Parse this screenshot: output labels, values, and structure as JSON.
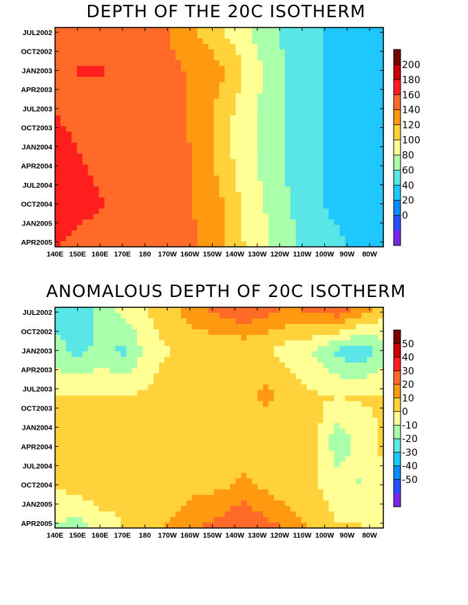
{
  "chart_data": [
    {
      "type": "heatmap",
      "title": "DEPTH OF THE 20C ISOTHERM",
      "xticks": [
        "140E",
        "150E",
        "160E",
        "170E",
        "180",
        "170W",
        "160W",
        "150W",
        "140W",
        "130W",
        "120W",
        "110W",
        "100W",
        "90W",
        "80W"
      ],
      "yticks": [
        "JUL2002",
        "OCT2002",
        "JAN2003",
        "APR2003",
        "JUL2003",
        "OCT2003",
        "JAN2004",
        "APR2004",
        "JUL2004",
        "OCT2004",
        "JAN2005",
        "APR2005"
      ],
      "colorbar": {
        "labels": [
          "200",
          "180",
          "160",
          "140",
          "120",
          "100",
          "80",
          "60",
          "40",
          "20",
          "0"
        ],
        "colors": [
          "#7a0000",
          "#c80000",
          "#ff1e1e",
          "#ff6a28",
          "#ff9a10",
          "#ffd23c",
          "#ffff96",
          "#aaffaa",
          "#5ae6e6",
          "#1ec8ff",
          "#0a8cff",
          "#2850ff",
          "#7828e6"
        ]
      },
      "description_levels": "contour levels every 20 m; warm pool west (>=140 m), shallow east (<=60 m)",
      "series": [
        {
          "values": [
            [
              145,
              150,
              155,
              155,
              150,
              140,
              125,
              110,
              95,
              80,
              70,
              60,
              55,
              50,
              45
            ],
            [
              150,
              160,
              160,
              155,
              150,
              145,
              140,
              130,
              110,
              90,
              70,
              60,
              55,
              50,
              45
            ],
            [
              160,
              155,
              155,
              150,
              150,
              145,
              140,
              120,
              100,
              85,
              70,
              60,
              55,
              50,
              45
            ],
            [
              165,
              160,
              155,
              155,
              150,
              150,
              140,
              120,
              100,
              85,
              70,
              60,
              55,
              50,
              45
            ],
            [
              165,
              165,
              160,
              155,
              150,
              150,
              140,
              130,
              105,
              90,
              75,
              60,
              55,
              50,
              45
            ],
            [
              160,
              155,
              150,
              150,
              150,
              150,
              145,
              130,
              110,
              95,
              80,
              65,
              60,
              55,
              50
            ]
          ]
        }
      ]
    },
    {
      "type": "heatmap",
      "title": "ANOMALOUS DEPTH OF 20C ISOTHERM",
      "xticks": [
        "140E",
        "150E",
        "160E",
        "170E",
        "180",
        "170W",
        "160W",
        "150W",
        "140W",
        "130W",
        "120W",
        "110W",
        "100W",
        "90W",
        "80W"
      ],
      "yticks": [
        "JUL2002",
        "OCT2002",
        "JAN2003",
        "APR2003",
        "JUL2003",
        "OCT2003",
        "JAN2004",
        "APR2004",
        "JUL2004",
        "OCT2004",
        "JAN2005",
        "APR2005"
      ],
      "colorbar": {
        "labels": [
          "50",
          "40",
          "30",
          "20",
          "10",
          "0",
          "-10",
          "-20",
          "-30",
          "-40",
          "-50"
        ],
        "colors": [
          "#7a0000",
          "#c80000",
          "#ff1e1e",
          "#ff6a28",
          "#ff9a10",
          "#ffd23c",
          "#ffff96",
          "#aaffaa",
          "#5ae6e6",
          "#1ec8ff",
          "#0a8cff",
          "#2850ff",
          "#7828e6"
        ]
      },
      "description_levels": "contour levels every 10 m; mostly 0 to +10 m with positive anomalies +20 to +30 m east in late 2002 and early 2005",
      "series": [
        {
          "values": [
            [
              -15,
              -20,
              -10,
              0,
              5,
              10,
              20,
              25,
              30,
              25,
              20,
              25,
              30,
              20,
              10
            ],
            [
              -10,
              -15,
              -10,
              -15,
              0,
              5,
              5,
              5,
              5,
              5,
              0,
              -5,
              -15,
              -20,
              -10
            ],
            [
              5,
              5,
              5,
              5,
              5,
              10,
              10,
              5,
              10,
              15,
              10,
              5,
              5,
              5,
              5
            ],
            [
              5,
              10,
              10,
              10,
              5,
              5,
              5,
              5,
              5,
              5,
              5,
              10,
              -10,
              0,
              5
            ],
            [
              5,
              10,
              10,
              5,
              5,
              5,
              10,
              10,
              15,
              10,
              5,
              5,
              0,
              -5,
              5
            ],
            [
              -5,
              -10,
              0,
              5,
              10,
              15,
              20,
              25,
              30,
              25,
              20,
              10,
              5,
              5,
              -5
            ]
          ]
        }
      ]
    }
  ]
}
